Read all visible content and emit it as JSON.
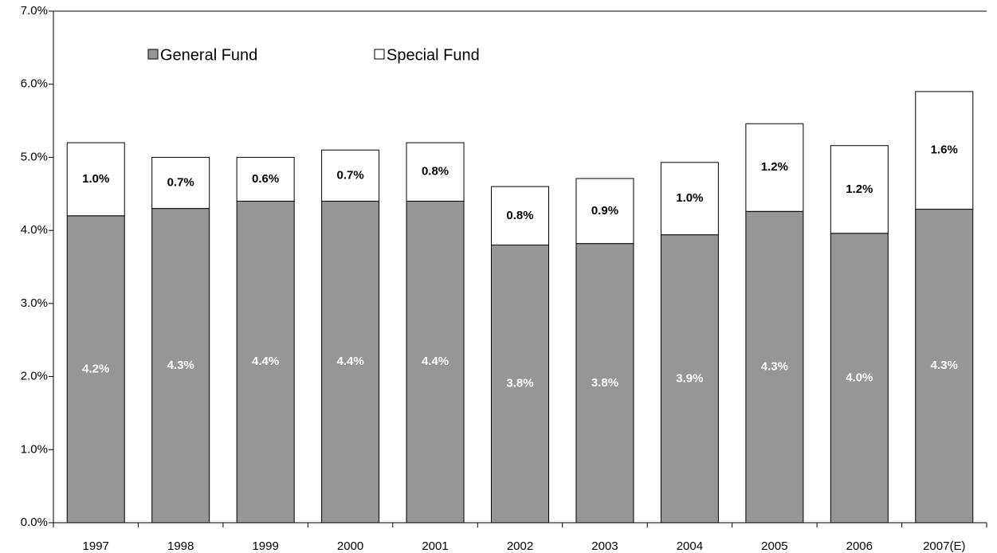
{
  "chart_data": {
    "type": "stacked_bar",
    "categories": [
      "1997",
      "1998",
      "1999",
      "2000",
      "2001",
      "2002",
      "2003",
      "2004",
      "2005",
      "2006",
      "2007(E)"
    ],
    "series": [
      {
        "name": "General Fund",
        "color": "#969696",
        "values": [
          4.2,
          4.3,
          4.4,
          4.4,
          4.4,
          3.8,
          3.82,
          3.94,
          4.26,
          3.96,
          4.29
        ],
        "value_labels": [
          "4.2%",
          "4.3%",
          "4.4%",
          "4.4%",
          "4.4%",
          "3.8%",
          "3.8%",
          "3.9%",
          "4.3%",
          "4.0%",
          "4.3%"
        ]
      },
      {
        "name": "Special Fund",
        "color": "#ffffff",
        "values": [
          1.0,
          0.7,
          0.6,
          0.7,
          0.8,
          0.8,
          0.89,
          0.99,
          1.2,
          1.2,
          1.61
        ],
        "value_labels": [
          "1.0%",
          "0.7%",
          "0.6%",
          "0.7%",
          "0.8%",
          "0.8%",
          "0.9%",
          "1.0%",
          "1.2%",
          "1.2%",
          "1.6%"
        ]
      }
    ],
    "ylim": [
      0,
      7
    ],
    "yticks": [
      {
        "value": 0,
        "label": "0.0%"
      },
      {
        "value": 1,
        "label": "1.0%"
      },
      {
        "value": 2,
        "label": "2.0%"
      },
      {
        "value": 3,
        "label": "3.0%"
      },
      {
        "value": 4,
        "label": "4.0%"
      },
      {
        "value": 5,
        "label": "5.0%"
      },
      {
        "value": 6,
        "label": "6.0%"
      },
      {
        "value": 7,
        "label": "7.0%"
      }
    ],
    "grid": false
  }
}
